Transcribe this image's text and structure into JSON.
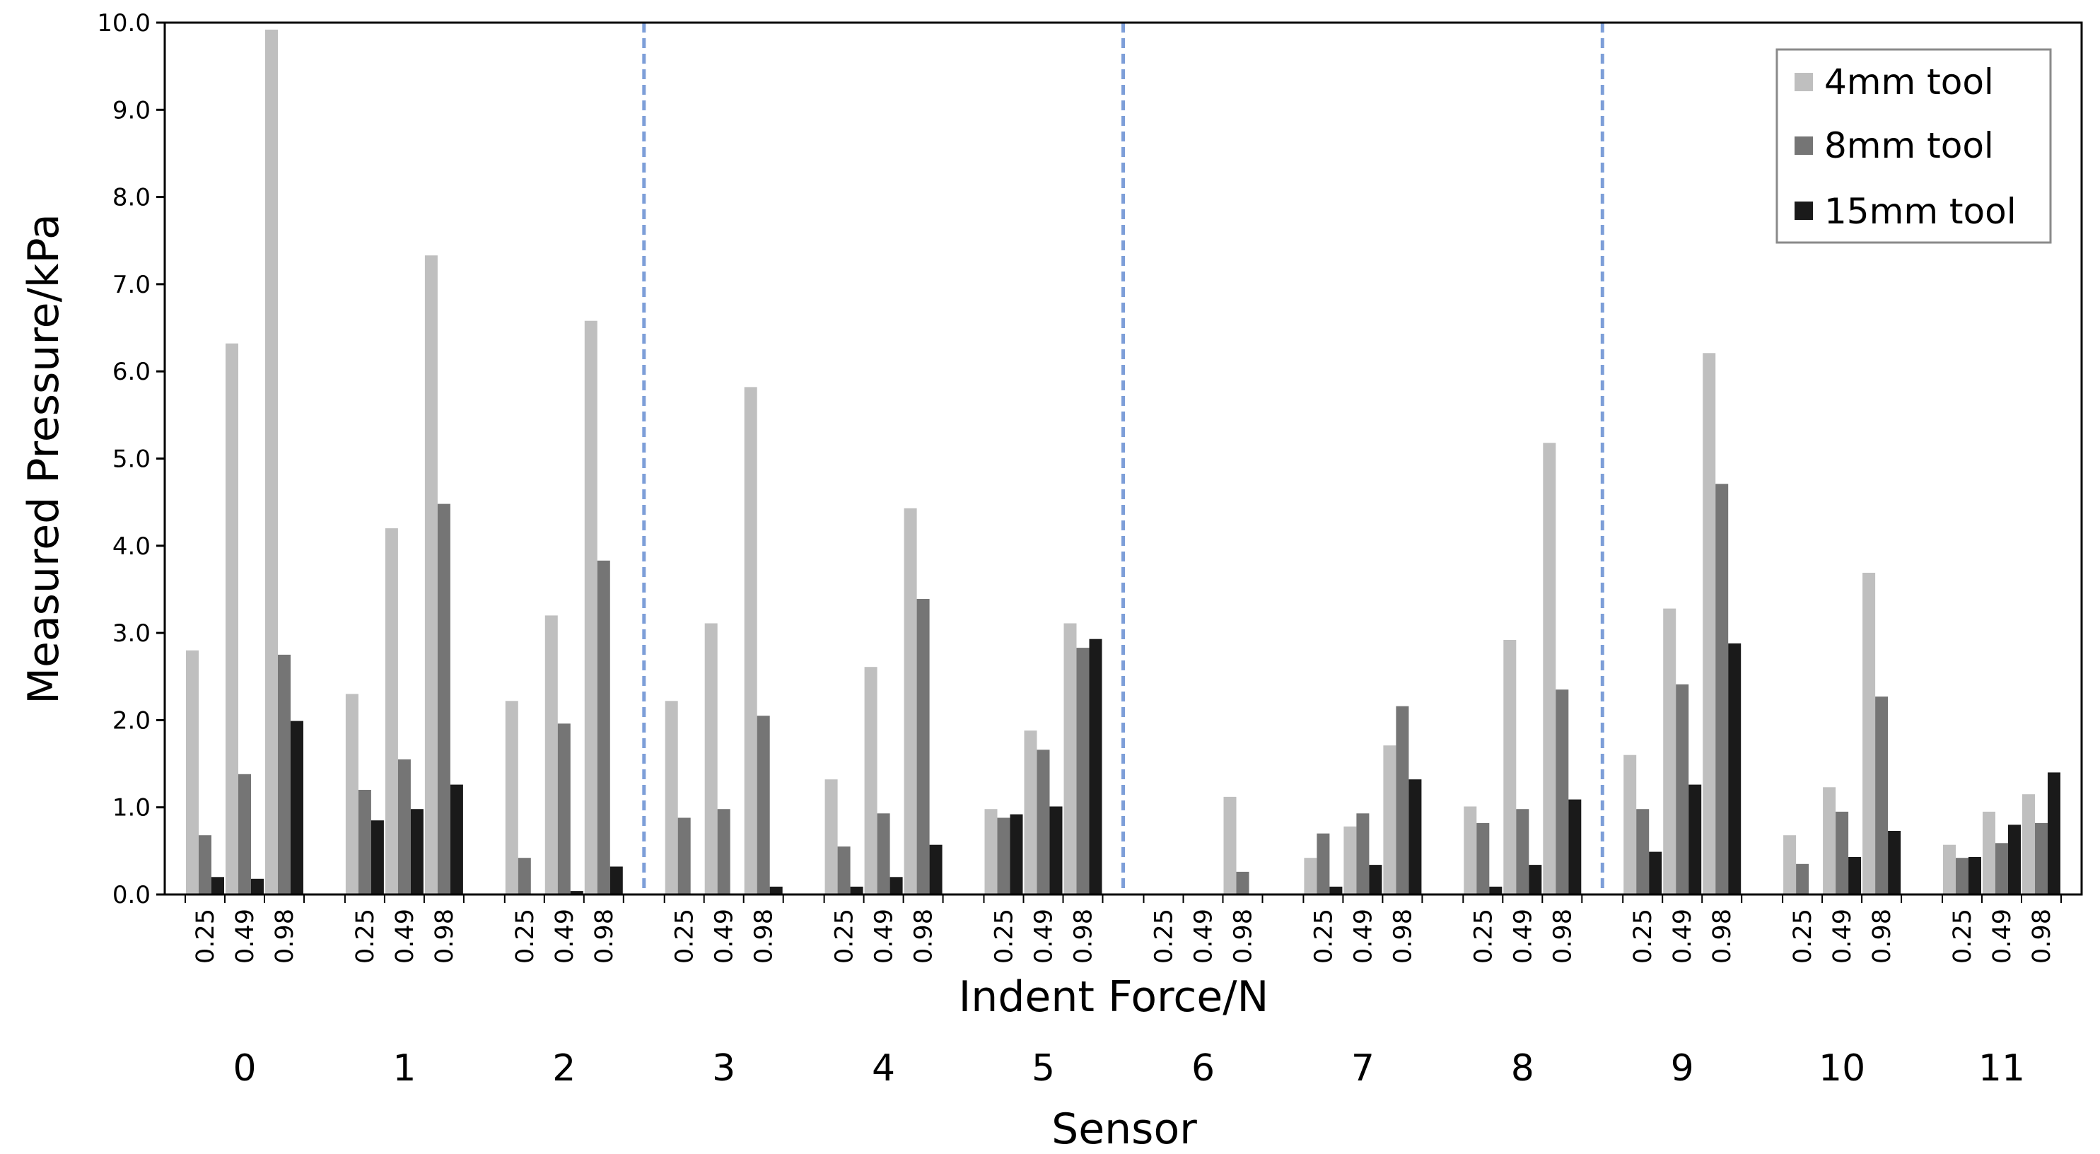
{
  "chart_data": {
    "type": "bar",
    "xlabel": "Indent Force/N",
    "ylabel": "Measured Pressure/kPa",
    "group_axis_label": "Sensor",
    "ylim": [
      0,
      10
    ],
    "yticks": [
      "0.0",
      "1.0",
      "2.0",
      "3.0",
      "4.0",
      "5.0",
      "6.0",
      "7.0",
      "8.0",
      "9.0",
      "10.0"
    ],
    "sensors": [
      "0",
      "1",
      "2",
      "3",
      "4",
      "5",
      "6",
      "7",
      "8",
      "9",
      "10",
      "11"
    ],
    "forces": [
      "0.25",
      "0.49",
      "0.98"
    ],
    "separators_after_sensor": [
      2,
      5,
      8
    ],
    "legend_position": "top-right",
    "grid": false,
    "series": [
      {
        "name": "4mm tool",
        "color": "#bfbfbf",
        "values": [
          [
            2.8,
            6.32,
            9.92
          ],
          [
            2.3,
            4.2,
            7.33
          ],
          [
            2.22,
            3.2,
            6.58
          ],
          [
            2.22,
            3.11,
            5.82
          ],
          [
            1.32,
            2.61,
            4.43
          ],
          [
            0.98,
            1.88,
            3.11
          ],
          [
            0,
            0,
            1.12
          ],
          [
            0.42,
            0.78,
            1.71
          ],
          [
            1.01,
            2.92,
            5.18
          ],
          [
            1.6,
            3.28,
            6.21
          ],
          [
            0.68,
            1.23,
            3.69
          ],
          [
            0.57,
            0.95,
            1.15
          ]
        ]
      },
      {
        "name": "8mm tool",
        "color": "#757575",
        "values": [
          [
            0.68,
            1.38,
            2.75
          ],
          [
            1.2,
            1.55,
            4.48
          ],
          [
            0.42,
            1.96,
            3.83
          ],
          [
            0.88,
            0.98,
            2.05
          ],
          [
            0.55,
            0.93,
            3.39
          ],
          [
            0.88,
            1.66,
            2.83
          ],
          [
            0,
            0,
            0.26
          ],
          [
            0.7,
            0.93,
            2.16
          ],
          [
            0.82,
            0.98,
            2.35
          ],
          [
            0.98,
            2.41,
            4.71
          ],
          [
            0.35,
            0.95,
            2.27
          ],
          [
            0.42,
            0.59,
            0.82
          ]
        ]
      },
      {
        "name": "15mm tool",
        "color": "#1a1a1a",
        "values": [
          [
            0.2,
            0.18,
            1.99
          ],
          [
            0.85,
            0.98,
            1.26
          ],
          [
            0,
            0.04,
            0.32
          ],
          [
            0,
            0,
            0.09
          ],
          [
            0.09,
            0.2,
            0.57
          ],
          [
            0.92,
            1.01,
            2.93
          ],
          [
            0,
            0,
            0
          ],
          [
            0.09,
            0.34,
            1.32
          ],
          [
            0.09,
            0.34,
            1.09
          ],
          [
            0.49,
            1.26,
            2.88
          ],
          [
            0,
            0.43,
            0.73
          ],
          [
            0.43,
            0.8,
            1.4
          ]
        ]
      }
    ]
  }
}
